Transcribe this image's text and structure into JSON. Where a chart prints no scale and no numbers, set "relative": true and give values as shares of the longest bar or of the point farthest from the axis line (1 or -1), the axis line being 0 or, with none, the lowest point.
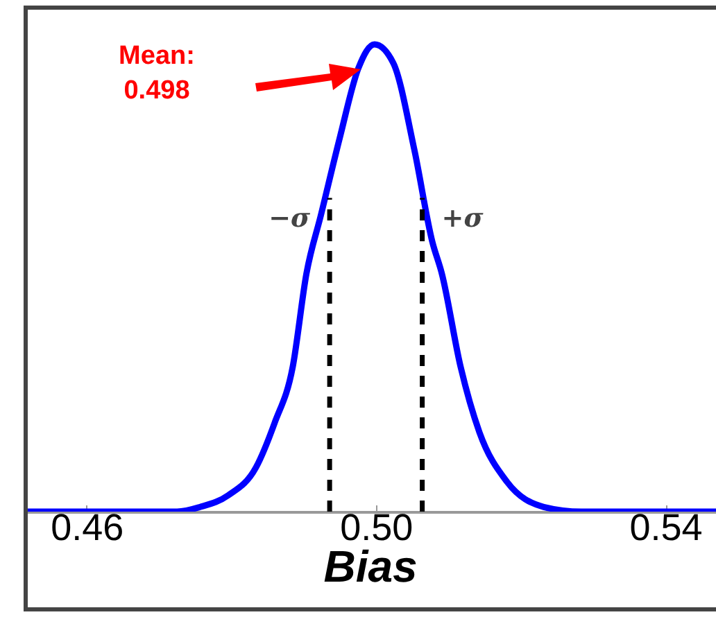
{
  "chart_data": {
    "type": "line",
    "relative": true,
    "xlabel": "Bias",
    "x": [
      0.4513,
      0.4725,
      0.4757,
      0.4796,
      0.4834,
      0.486,
      0.4885,
      0.4904,
      0.4924,
      0.495,
      0.4976,
      0.4998,
      0.5024,
      0.5053,
      0.5078,
      0.5091,
      0.5117,
      0.5143,
      0.5181,
      0.5232,
      0.5284,
      0.547
    ],
    "series": [
      {
        "color": "#0000ff",
        "values": [
          0,
          0,
          0.01,
          0.035,
          0.094,
          0.19,
          0.31,
          0.51,
          0.635,
          0.8,
          0.95,
          1,
          0.96,
          0.775,
          0.577,
          0.51,
          0.31,
          0.17,
          0.064,
          0.01,
          0,
          0
        ]
      }
    ],
    "xlim": [
      0.4513,
      0.547
    ],
    "xticks": [
      0.46,
      {
        "value": 0.5,
        "label": "0.50"
      },
      0.54
    ],
    "ref_lines": [
      {
        "axis": "x",
        "value": 0.4936,
        "label": "−σ",
        "color": "#000000",
        "line_style": "dashed"
      },
      {
        "axis": "x",
        "value": 0.5064,
        "label": "+σ",
        "color": "#000000",
        "line_style": "dashed"
      }
    ],
    "annotations": [
      "Mean:\n0.498"
    ],
    "marker": "none",
    "line_style": "solid"
  }
}
